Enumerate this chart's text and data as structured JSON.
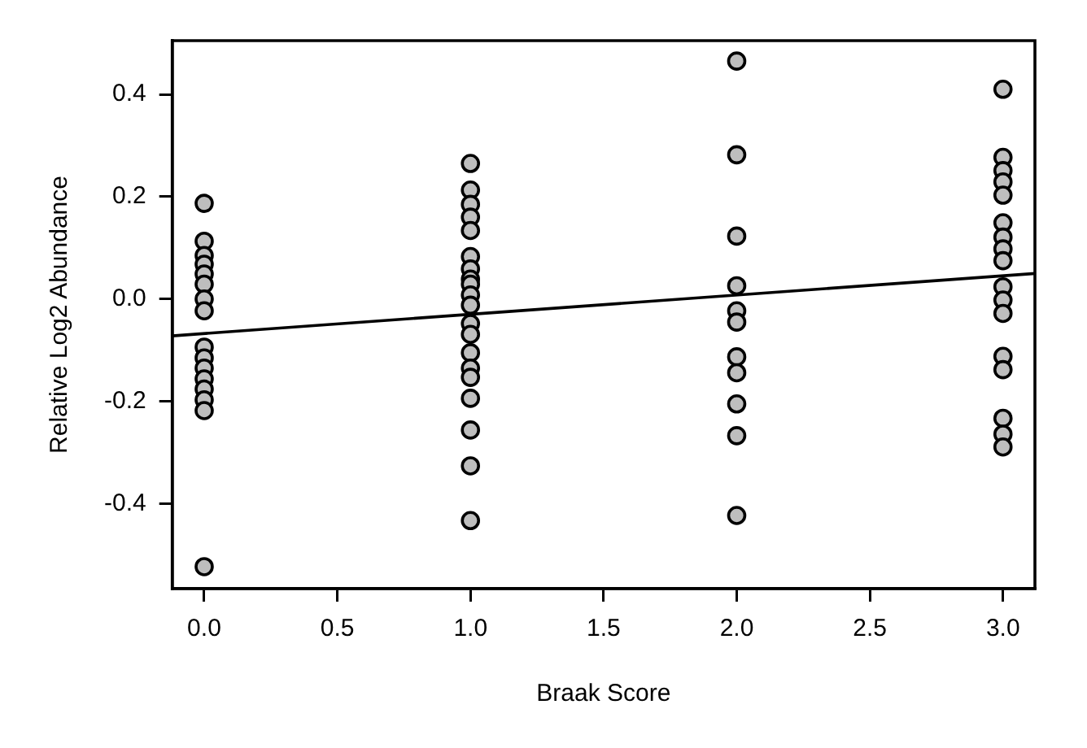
{
  "chart_data": {
    "type": "scatter",
    "xlabel": "Braak Score",
    "ylabel": "Relative Log2 Abundance",
    "xlim": [
      -0.12,
      3.12
    ],
    "xticks": [
      {
        "value": 0,
        "label": "0.0"
      },
      0.5,
      {
        "value": 1,
        "label": "1.0"
      },
      1.5,
      {
        "value": 2,
        "label": "2.0"
      },
      2.5,
      {
        "value": 3,
        "label": "3.0"
      }
    ],
    "ylim": [
      -0.566,
      0.505
    ],
    "yticks": [
      {
        "value": -0.4,
        "label": "-0.4"
      },
      {
        "value": -0.2,
        "label": "-0.2"
      },
      {
        "value": 0,
        "label": "0.0"
      },
      {
        "value": 0.2,
        "label": "0.2"
      },
      {
        "value": 0.4,
        "label": "0.4"
      }
    ],
    "grid": false,
    "legend": false,
    "series": [
      {
        "type": "scatter",
        "marker": "circle",
        "color": "#bebebe",
        "x": [
          0,
          0,
          0,
          0,
          0,
          0,
          0,
          0,
          0,
          0,
          0,
          0,
          0,
          0,
          0,
          0,
          1,
          1,
          1,
          1,
          1,
          1,
          1,
          1,
          1,
          1,
          1,
          1,
          1,
          1,
          1,
          1,
          1,
          1,
          1,
          1,
          2,
          2,
          2,
          2,
          2,
          2,
          2,
          2,
          2,
          2,
          2,
          3,
          3,
          3,
          3,
          3,
          3,
          3,
          3,
          3,
          3,
          3,
          3,
          3,
          3,
          3,
          3,
          3
        ],
        "values": [
          0.187,
          0.113,
          0.085,
          0.068,
          0.049,
          0.029,
          0.0,
          -0.023,
          -0.094,
          -0.115,
          -0.135,
          -0.156,
          -0.176,
          -0.197,
          -0.218,
          -0.523,
          0.265,
          0.213,
          0.185,
          0.16,
          0.134,
          0.083,
          0.059,
          0.039,
          0.029,
          0.008,
          -0.012,
          -0.048,
          -0.069,
          -0.105,
          -0.135,
          -0.153,
          -0.194,
          -0.256,
          -0.326,
          -0.433,
          0.465,
          0.282,
          0.123,
          0.026,
          -0.023,
          -0.045,
          -0.113,
          -0.144,
          -0.205,
          -0.267,
          -0.423,
          0.41,
          0.277,
          0.251,
          0.229,
          0.203,
          0.149,
          0.121,
          0.098,
          0.075,
          0.024,
          -0.002,
          -0.028,
          -0.112,
          -0.138,
          -0.233,
          -0.264,
          -0.289
        ]
      },
      {
        "type": "line",
        "marker": "none",
        "color": "#000000",
        "x": [
          -0.12,
          3.12
        ],
        "values": [
          -0.072,
          0.05
        ]
      }
    ]
  }
}
